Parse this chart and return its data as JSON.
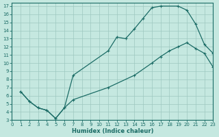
{
  "xlabel": "Humidex (Indice chaleur)",
  "xlim": [
    0,
    23
  ],
  "ylim": [
    3,
    17.4
  ],
  "xticks": [
    0,
    1,
    2,
    3,
    4,
    5,
    6,
    7,
    8,
    9,
    10,
    11,
    12,
    13,
    14,
    15,
    16,
    17,
    18,
    19,
    20,
    21,
    22,
    23
  ],
  "yticks": [
    3,
    4,
    5,
    6,
    7,
    8,
    9,
    10,
    11,
    12,
    13,
    14,
    15,
    16,
    17
  ],
  "bg_color": "#c5e8e0",
  "grid_color": "#9dc8c0",
  "line_color": "#1a6b65",
  "curve1_x": [
    1,
    2,
    3,
    4,
    5,
    6,
    7,
    11,
    12,
    13,
    14,
    15,
    16,
    17,
    19,
    20,
    21,
    22,
    23
  ],
  "curve1_y": [
    6.5,
    5.3,
    4.5,
    4.2,
    3.2,
    4.5,
    8.5,
    11.5,
    13.2,
    13.0,
    14.2,
    15.5,
    16.8,
    17.0,
    17.0,
    16.5,
    14.8,
    12.3,
    11.2
  ],
  "curve2_x": [
    1,
    2,
    3,
    4,
    5,
    6,
    7,
    11,
    14,
    16,
    17,
    18,
    19,
    20,
    21,
    22,
    23
  ],
  "curve2_y": [
    6.5,
    5.3,
    4.5,
    4.2,
    3.2,
    4.5,
    5.5,
    7.0,
    8.5,
    10.0,
    10.8,
    11.5,
    12.0,
    12.5,
    11.8,
    11.2,
    9.5
  ]
}
